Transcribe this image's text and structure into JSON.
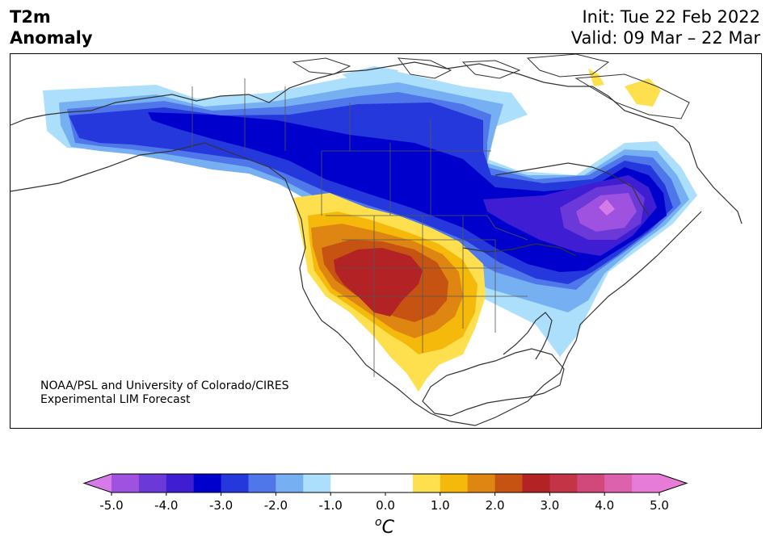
{
  "title": {
    "line1": "T2m",
    "line2": "Anomaly"
  },
  "header": {
    "init": "Init: Tue 22 Feb 2022",
    "valid": "Valid: 09 Mar – 22 Mar"
  },
  "credit": {
    "line1": "NOAA/PSL and University of Colorado/CIRES",
    "line2": "Experimental LIM Forecast"
  },
  "colorbar": {
    "unit_base": "o",
    "unit_letter": "C",
    "ticks": [
      "-5.0",
      "-4.0",
      "-3.0",
      "-2.0",
      "-1.0",
      "0.0",
      "1.0",
      "2.0",
      "3.0",
      "4.0",
      "5.0"
    ],
    "levels": [
      -5.0,
      -4.5,
      -4.0,
      -3.5,
      -3.0,
      -2.5,
      -2.0,
      -1.5,
      -1.0,
      -0.5,
      0.5,
      1.0,
      1.5,
      2.0,
      2.5,
      3.0,
      3.5,
      4.0,
      4.5,
      5.0
    ],
    "colors": [
      "#d57ae9",
      "#9f51e0",
      "#6b39d8",
      "#3e1dd3",
      "#0000cd",
      "#2438dc",
      "#4f77e9",
      "#77b0f2",
      "#acdffb",
      "#ffffff",
      "#ffffff",
      "#fee04f",
      "#f5b90b",
      "#df8612",
      "#c65312",
      "#b32224",
      "#c23446",
      "#d1497a",
      "#dc62ae",
      "#e67cd8"
    ],
    "extend_low_color": "#d57ae9",
    "extend_high_color": "#e67cd8"
  }
}
